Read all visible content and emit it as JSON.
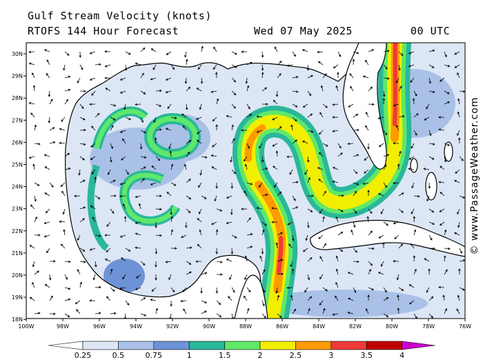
{
  "header": {
    "title": "Gulf Stream Velocity (knots)",
    "model": "RTOFS 144 Hour Forecast",
    "date": "Wed 07 May 2025",
    "time": "00 UTC"
  },
  "watermark": "© www.PassageWeather.com",
  "map": {
    "lat_labels": [
      "30N",
      "29N",
      "28N",
      "27N",
      "26N",
      "25N",
      "24N",
      "23N",
      "22N",
      "21N",
      "20N",
      "19N",
      "18N"
    ],
    "lon_labels": [
      "100W",
      "98W",
      "96W",
      "94W",
      "92W",
      "90W",
      "88W",
      "86W",
      "84W",
      "82W",
      "80W",
      "78W",
      "76W"
    ]
  },
  "colorbar": {
    "labels": [
      "0.25",
      "0.5",
      "0.75",
      "1",
      "1.5",
      "2",
      "2.5",
      "3",
      "3.5",
      "4"
    ],
    "colors": [
      "#ffffff",
      "#dce6f5",
      "#a9c1e6",
      "#6d93d6",
      "#2ab89a",
      "#5fe86a",
      "#f2ee00",
      "#ff9a00",
      "#ee3a3a",
      "#c00000",
      "#cc00cc"
    ]
  },
  "colors": {
    "land": "#ffffff",
    "low": "#dce6f5",
    "mid": "#a9c1e6",
    "current_edge": "#2ab89a",
    "current_mid": "#f2ee00",
    "current_core": "#ee3a3a"
  }
}
